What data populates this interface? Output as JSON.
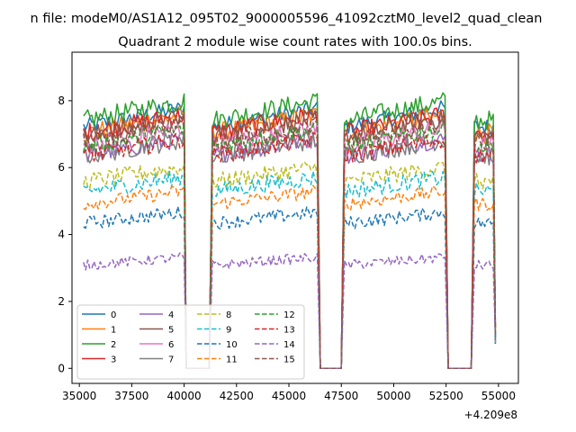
{
  "chart_data": {
    "type": "line",
    "suptitle": "n file: modeM0/AS1A12_095T02_9000005596_41092cztM0_level2_quad_clean",
    "title": "Quadrant 2 module wise count rates with 100.0s bins.",
    "xlabel": "",
    "ylabel": "",
    "x_offset_label": "+4.209e8",
    "xlim": [
      34650,
      55950
    ],
    "ylim": [
      -0.45,
      9.45
    ],
    "x_ticks": [
      35000,
      37500,
      40000,
      42500,
      45000,
      47500,
      50000,
      52500,
      55000
    ],
    "x_tick_labels": [
      "35000",
      "37500",
      "40000",
      "42500",
      "45000",
      "47500",
      "50000",
      "52500",
      "55000"
    ],
    "y_ticks": [
      0,
      2,
      4,
      6,
      8
    ],
    "y_tick_labels": [
      "0",
      "2",
      "4",
      "6",
      "8"
    ],
    "legend_position": "lower-left",
    "legend_columns": 4,
    "time_bin_seconds": 100,
    "segments": [
      {
        "start": 35200,
        "end": 39950
      },
      {
        "start": 41350,
        "end": 46350
      },
      {
        "start": 47650,
        "end": 52450
      },
      {
        "start": 53850,
        "end": 54850
      }
    ],
    "gaps": [
      {
        "start": 40100,
        "end": 41200,
        "value": 0
      },
      {
        "start": 46500,
        "end": 47500,
        "value": 0
      },
      {
        "start": 52600,
        "end": 53700,
        "value": 0
      }
    ],
    "series": [
      {
        "name": "0",
        "color": "#1f77b4",
        "dash": "solid",
        "mean": 7.5,
        "noise": 0.25
      },
      {
        "name": "1",
        "color": "#ff7f0e",
        "dash": "solid",
        "mean": 7.3,
        "noise": 0.3
      },
      {
        "name": "2",
        "color": "#2ca02c",
        "dash": "solid",
        "mean": 7.7,
        "noise": 0.3
      },
      {
        "name": "3",
        "color": "#d62728",
        "dash": "solid",
        "mean": 7.3,
        "noise": 0.3
      },
      {
        "name": "4",
        "color": "#9467bd",
        "dash": "solid",
        "mean": 6.6,
        "noise": 0.25
      },
      {
        "name": "5",
        "color": "#8c564b",
        "dash": "solid",
        "mean": 7.2,
        "noise": 0.3
      },
      {
        "name": "6",
        "color": "#e377c2",
        "dash": "solid",
        "mean": 6.9,
        "noise": 0.3
      },
      {
        "name": "7",
        "color": "#7f7f7f",
        "dash": "solid",
        "mean": 6.6,
        "noise": 0.3
      },
      {
        "name": "8",
        "color": "#bcbd22",
        "dash": "dashed",
        "mean": 5.8,
        "noise": 0.25
      },
      {
        "name": "9",
        "color": "#17becf",
        "dash": "dashed",
        "mean": 5.5,
        "noise": 0.25
      },
      {
        "name": "10",
        "color": "#1f77b4",
        "dash": "dashed",
        "mean": 4.5,
        "noise": 0.2
      },
      {
        "name": "11",
        "color": "#ff7f0e",
        "dash": "dashed",
        "mean": 5.1,
        "noise": 0.2
      },
      {
        "name": "12",
        "color": "#2ca02c",
        "dash": "dashed",
        "mean": 6.9,
        "noise": 0.25
      },
      {
        "name": "13",
        "color": "#d62728",
        "dash": "dashed",
        "mean": 6.6,
        "noise": 0.25
      },
      {
        "name": "14",
        "color": "#9467bd",
        "dash": "dashed",
        "mean": 3.2,
        "noise": 0.15
      },
      {
        "name": "15",
        "color": "#8c564b",
        "dash": "dashed",
        "mean": 7.0,
        "noise": 0.3
      }
    ]
  }
}
